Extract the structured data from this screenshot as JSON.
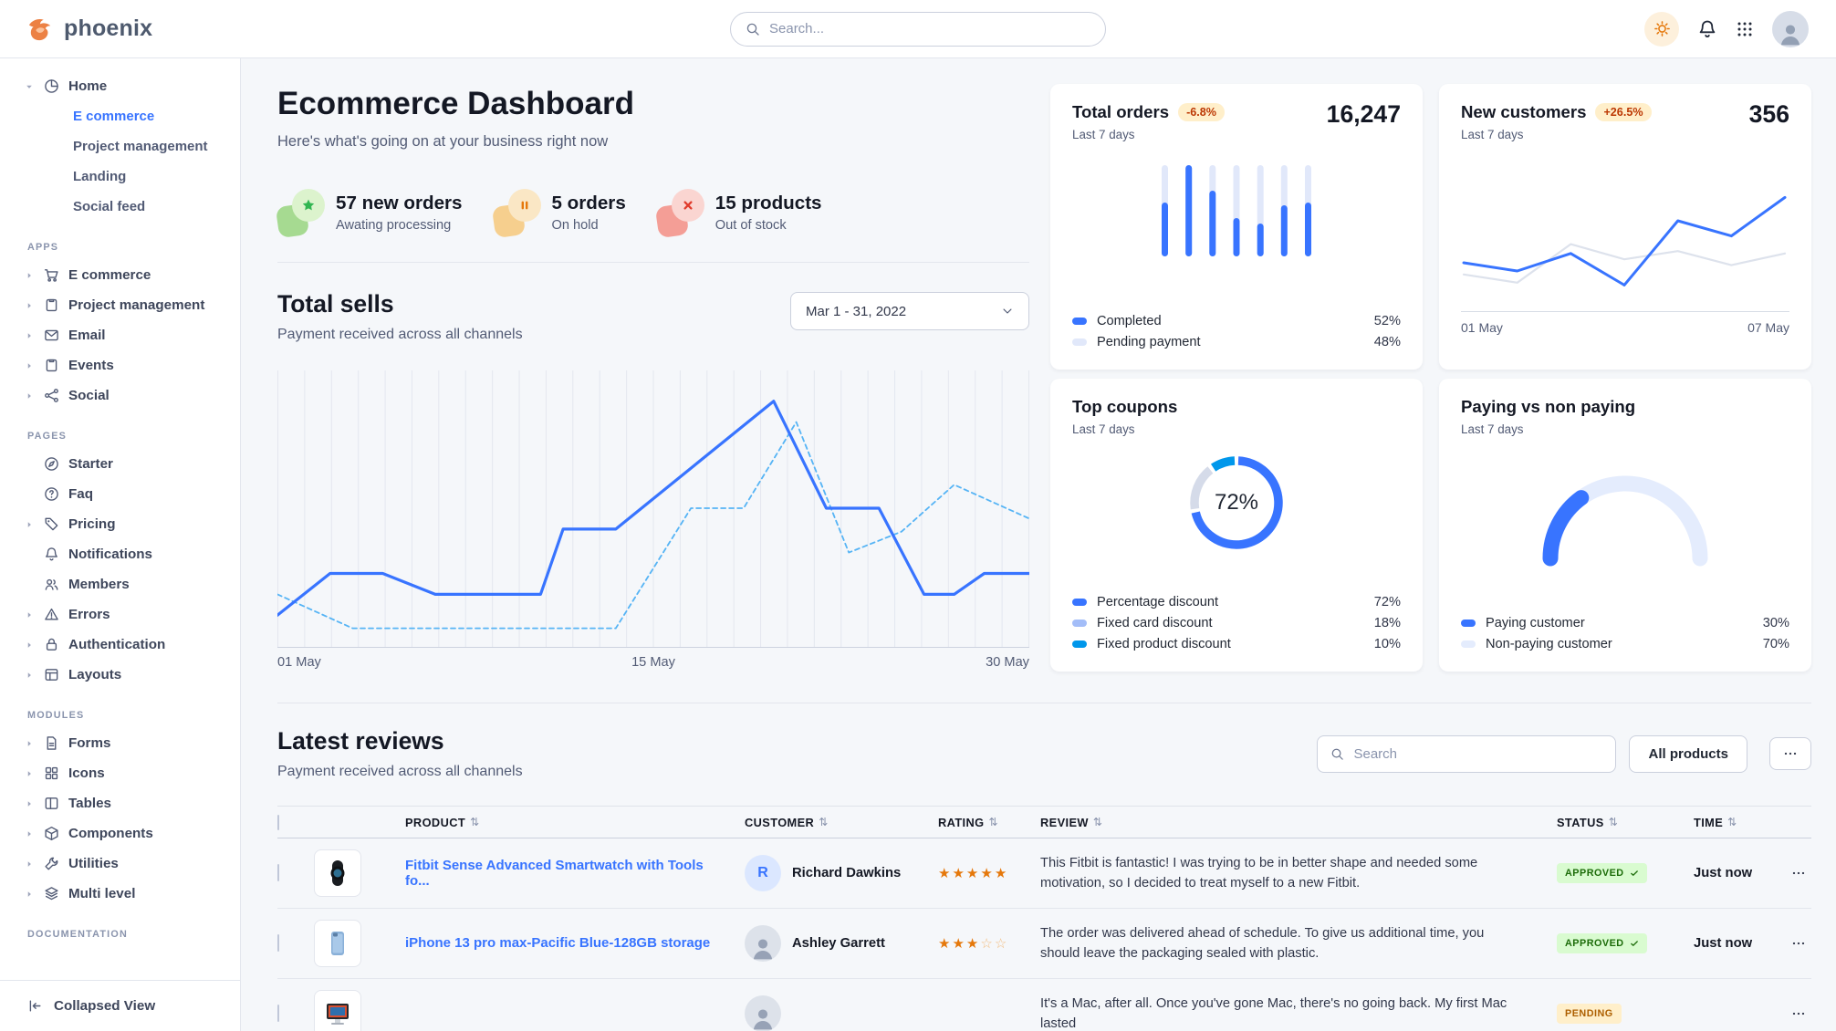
{
  "brand": {
    "name": "phoenix"
  },
  "header": {
    "search_placeholder": "Search...",
    "icons": [
      "sun-icon",
      "bell-icon",
      "apps-grid-icon",
      "user-avatar"
    ]
  },
  "sidebar": {
    "home": {
      "label": "Home",
      "icon": "pie-chart-icon",
      "children": [
        {
          "label": "E commerce",
          "active": true
        },
        {
          "label": "Project management",
          "active": false
        },
        {
          "label": "Landing",
          "active": false
        },
        {
          "label": "Social feed",
          "active": false
        }
      ]
    },
    "sections": [
      {
        "label": "APPS",
        "items": [
          {
            "label": "E commerce",
            "icon": "cart-icon",
            "expandable": true
          },
          {
            "label": "Project management",
            "icon": "clipboard-icon",
            "expandable": true
          },
          {
            "label": "Email",
            "icon": "envelope-icon",
            "expandable": true
          },
          {
            "label": "Events",
            "icon": "clipboard-icon",
            "expandable": true
          },
          {
            "label": "Social",
            "icon": "share-icon",
            "expandable": true
          }
        ]
      },
      {
        "label": "PAGES",
        "items": [
          {
            "label": "Starter",
            "icon": "compass-icon",
            "expandable": false
          },
          {
            "label": "Faq",
            "icon": "question-circle-icon",
            "expandable": false
          },
          {
            "label": "Pricing",
            "icon": "tag-icon",
            "expandable": true
          },
          {
            "label": "Notifications",
            "icon": "bell-icon",
            "expandable": false
          },
          {
            "label": "Members",
            "icon": "users-icon",
            "expandable": false
          },
          {
            "label": "Errors",
            "icon": "warning-icon",
            "expandable": true
          },
          {
            "label": "Authentication",
            "icon": "lock-icon",
            "expandable": true
          },
          {
            "label": "Layouts",
            "icon": "layout-icon",
            "expandable": true
          }
        ]
      },
      {
        "label": "MODULES",
        "items": [
          {
            "label": "Forms",
            "icon": "file-text-icon",
            "expandable": true
          },
          {
            "label": "Icons",
            "icon": "grid-icon",
            "expandable": true
          },
          {
            "label": "Tables",
            "icon": "table-icon",
            "expandable": true
          },
          {
            "label": "Components",
            "icon": "box-icon",
            "expandable": true
          },
          {
            "label": "Utilities",
            "icon": "wrench-icon",
            "expandable": true
          },
          {
            "label": "Multi level",
            "icon": "layers-icon",
            "expandable": true
          }
        ]
      },
      {
        "label": "DOCUMENTATION",
        "items": []
      }
    ],
    "collapsed_view_label": "Collapsed View"
  },
  "page": {
    "title": "Ecommerce Dashboard",
    "subtitle": "Here's what's going on at your business right now"
  },
  "stats": [
    {
      "value": "57 new orders",
      "sub": "Awating processing",
      "icon": "star-icon",
      "theme": "success"
    },
    {
      "value": "5 orders",
      "sub": "On hold",
      "icon": "pause-icon",
      "theme": "warning"
    },
    {
      "value": "15 products",
      "sub": "Out of stock",
      "icon": "x-icon",
      "theme": "danger"
    }
  ],
  "total_sells": {
    "title": "Total sells",
    "subtitle": "Payment received across all channels",
    "date_range": "Mar 1 - 31, 2022"
  },
  "cards": {
    "total_orders": {
      "title": "Total orders",
      "badge": "-6.8%",
      "period": "Last 7 days",
      "value": "16,247",
      "legend": [
        {
          "label": "Completed",
          "value": "52%",
          "color": "#3874ff"
        },
        {
          "label": "Pending payment",
          "value": "48%",
          "color": "#e1e8fa"
        }
      ]
    },
    "new_customers": {
      "title": "New customers",
      "badge": "+26.5%",
      "period": "Last 7 days",
      "value": "356",
      "x_labels": [
        "01 May",
        "07 May"
      ]
    },
    "top_coupons": {
      "title": "Top coupons",
      "period": "Last 7 days",
      "center_label": "72%",
      "legend": [
        {
          "label": "Percentage discount",
          "value": "72%",
          "color": "#3874ff"
        },
        {
          "label": "Fixed card discount",
          "value": "18%",
          "color": "#a3bdf8"
        },
        {
          "label": "Fixed product discount",
          "value": "10%",
          "color": "#0097eb"
        }
      ]
    },
    "paying": {
      "title": "Paying vs non paying",
      "period": "Last 7 days",
      "legend": [
        {
          "label": "Paying customer",
          "value": "30%",
          "color": "#3874ff"
        },
        {
          "label": "Non-paying customer",
          "value": "70%",
          "color": "#e4ecfd"
        }
      ]
    }
  },
  "reviews": {
    "title": "Latest reviews",
    "subtitle": "Payment received across all channels",
    "search_placeholder": "Search",
    "filter_label": "All products",
    "columns": [
      "PRODUCT",
      "CUSTOMER",
      "RATING",
      "REVIEW",
      "STATUS",
      "TIME"
    ],
    "rows": [
      {
        "product": "Fitbit Sense Advanced Smartwatch with Tools fo...",
        "thumb": "smartwatch",
        "customer": "Richard Dawkins",
        "avatar_initial": "R",
        "rating": 5,
        "review": "This Fitbit is fantastic! I was trying to be in better shape and needed some motivation, so I decided to treat myself to a new Fitbit.",
        "status": "APPROVED",
        "time": "Just now"
      },
      {
        "product": "iPhone 13 pro max-Pacific Blue-128GB storage",
        "thumb": "iphone",
        "customer": "Ashley Garrett",
        "avatar_initial": "",
        "rating": 3,
        "review": "The order was delivered ahead of schedule. To give us additional time, you should leave the packaging sealed with plastic.",
        "status": "APPROVED",
        "time": "Just now"
      },
      {
        "product": "",
        "thumb": "imac",
        "customer": "",
        "avatar_initial": "",
        "rating": null,
        "review": "It's a Mac, after all. Once you've gone Mac, there's no going back. My first Mac lasted",
        "status": "PENDING",
        "time": ""
      }
    ]
  },
  "chart_data": [
    {
      "id": "total_sells",
      "type": "line",
      "title": "Total sells",
      "x_axis": {
        "ticks": [
          "01 May",
          "15 May",
          "30 May"
        ]
      },
      "y_range": [
        0,
        100
      ],
      "grid": "vertical",
      "series": [
        {
          "name": "current period",
          "style": "solid",
          "color": "#3874ff",
          "points": [
            [
              0,
              9
            ],
            [
              7,
              25
            ],
            [
              14,
              25
            ],
            [
              21,
              17
            ],
            [
              35,
              17
            ],
            [
              38,
              42
            ],
            [
              45,
              42
            ],
            [
              66,
              91
            ],
            [
              73,
              50
            ],
            [
              80,
              50
            ],
            [
              86,
              17
            ],
            [
              90,
              17
            ],
            [
              94,
              25
            ],
            [
              100,
              25
            ]
          ]
        },
        {
          "name": "previous period",
          "style": "dashed",
          "color": "#56b4f5",
          "points": [
            [
              0,
              17
            ],
            [
              10,
              4
            ],
            [
              45,
              4
            ],
            [
              55,
              50
            ],
            [
              62,
              50
            ],
            [
              69,
              83
            ],
            [
              76,
              33
            ],
            [
              83,
              41
            ],
            [
              90,
              59
            ],
            [
              100,
              46
            ]
          ]
        }
      ]
    },
    {
      "id": "total_orders",
      "type": "bar",
      "categories": [
        "1",
        "2",
        "3",
        "4",
        "5",
        "6",
        "7"
      ],
      "completed_pct": [
        59,
        100,
        72,
        42,
        36,
        56,
        59
      ],
      "colors": {
        "completed": "#3874ff",
        "pending": "#e1e8fa"
      }
    },
    {
      "id": "new_customers",
      "type": "line",
      "x_ticks": [
        "01 May",
        "07 May"
      ],
      "series": [
        {
          "name": "current",
          "color": "#3874ff",
          "values": [
            32,
            25,
            40,
            13,
            68,
            55,
            88
          ]
        },
        {
          "name": "previous",
          "color": "#dde2ec",
          "values": [
            22,
            15,
            48,
            35,
            42,
            30,
            40
          ]
        }
      ]
    },
    {
      "id": "top_coupons",
      "type": "donut",
      "center": "72%",
      "labels": [
        "Percentage discount",
        "Fixed card discount",
        "Fixed product discount"
      ],
      "values": [
        72,
        18,
        10
      ],
      "colors": [
        "#3874ff",
        "#d5dbe9",
        "#0097eb"
      ]
    },
    {
      "id": "paying_gauge",
      "type": "gauge",
      "labels": [
        "Paying customer",
        "Non-paying customer"
      ],
      "values": [
        30,
        70
      ],
      "colors": [
        "#3874ff",
        "#e4ecfd"
      ]
    }
  ]
}
